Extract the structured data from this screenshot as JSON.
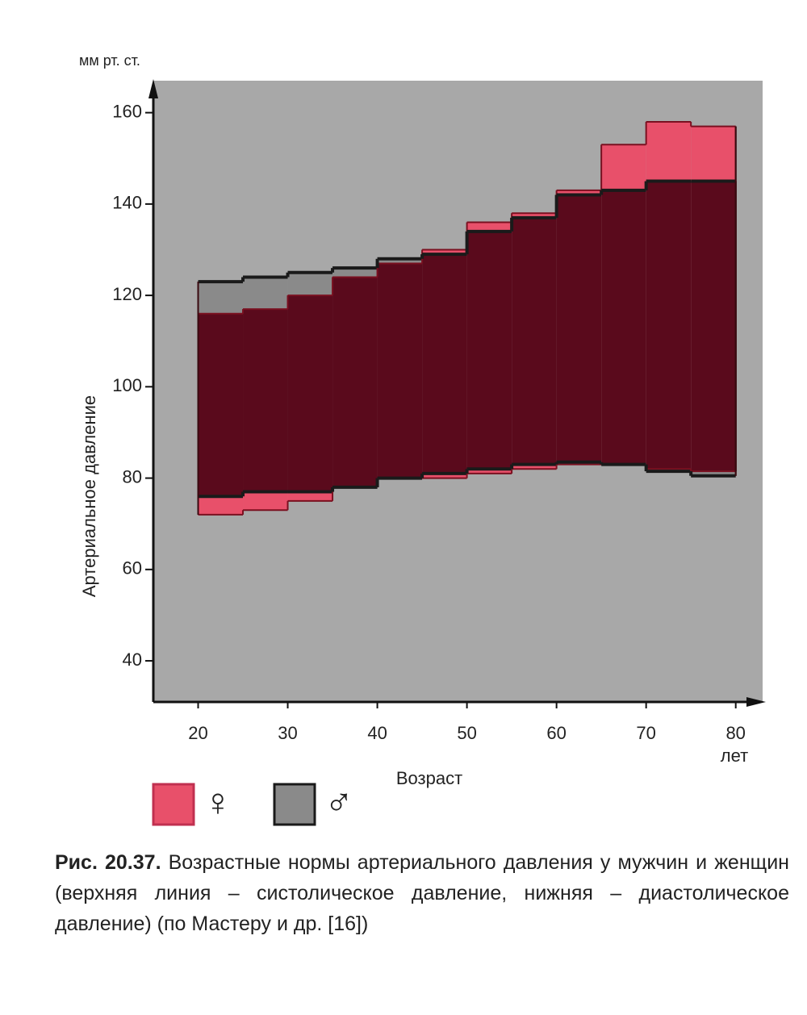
{
  "chart_data": {
    "type": "step-band",
    "y_unit": "мм рт. ст.",
    "ylabel": "Артериальное давление",
    "xlabel": "Возраст",
    "x_unit": "лет",
    "bins": [
      20,
      25,
      30,
      35,
      40,
      45,
      50,
      55,
      60,
      65,
      70,
      75,
      80
    ],
    "series": [
      {
        "name": "♀",
        "color": "#e8506a",
        "systolic": [
          116,
          117,
          120,
          124,
          127,
          130,
          136,
          138,
          143,
          153,
          158,
          157
        ],
        "diastolic": [
          72,
          73,
          75,
          78,
          80,
          80,
          81,
          82,
          83,
          83,
          82,
          81.5
        ]
      },
      {
        "name": "♂",
        "color": "#8a8a8a",
        "systolic": [
          123,
          124,
          125,
          126,
          128,
          129,
          134,
          137,
          142,
          143,
          145,
          145
        ],
        "diastolic": [
          76,
          77,
          77,
          78,
          80,
          81,
          82,
          83,
          83.5,
          83,
          81.5,
          80.5
        ]
      }
    ],
    "overlap_color": "#5a0a1c",
    "background": "#a8a8a8",
    "xlim": [
      15,
      83
    ],
    "xticks": [
      20,
      30,
      40,
      50,
      60,
      70,
      80
    ],
    "ylim": [
      31,
      167
    ],
    "yticks": [
      40,
      60,
      80,
      100,
      120,
      140,
      160
    ]
  },
  "caption": {
    "label": "Рис. 20.37.",
    "text": "Возрастные нормы артериального давления у мужчин и женщин (верхняя линия – систолическое давление, нижняя – диастолическое давление) (по Мастеру и др. [16])"
  }
}
